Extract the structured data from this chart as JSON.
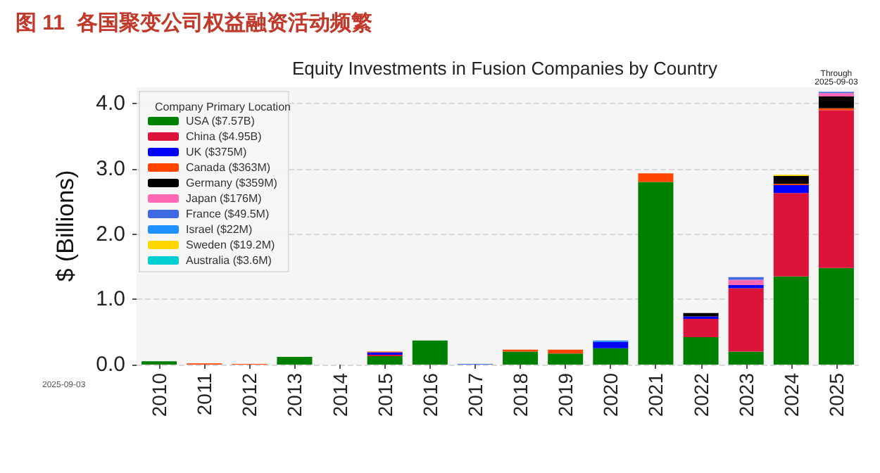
{
  "chart_data": {
    "type": "bar",
    "title": "图 11  各国聚变公司权益融资活动频繁",
    "subtitle": "Equity Investments in Fusion Companies by Country",
    "ylabel": "$ (Billions)",
    "legend_title": "Company Primary Location",
    "categories": [
      "2010",
      "2011",
      "2012",
      "2013",
      "2014",
      "2015",
      "2016",
      "2017",
      "2018",
      "2019",
      "2020",
      "2021",
      "2022",
      "2023",
      "2024",
      "2025"
    ],
    "stacked": true,
    "ylim": [
      0,
      4.25
    ],
    "yticks": [
      {
        "value": 0,
        "label": "0.0"
      },
      {
        "value": 1,
        "label": "1.0"
      },
      {
        "value": 2,
        "label": "2.0"
      },
      {
        "value": 3,
        "label": "3.0"
      },
      {
        "value": 4,
        "label": "4.0"
      }
    ],
    "grid": "y",
    "legend": "top left",
    "series": [
      {
        "name": "USA ($7.57B)",
        "color": "#008000",
        "values": [
          0.05,
          0,
          0,
          0.12,
          0,
          0.13,
          0.37,
          0,
          0.2,
          0.17,
          0.25,
          2.8,
          0.42,
          0.2,
          1.35,
          1.48
        ]
      },
      {
        "name": "China ($4.95B)",
        "color": "#dc143c",
        "values": [
          0,
          0,
          0,
          0,
          0,
          0.02,
          0,
          0,
          0,
          0,
          0,
          0,
          0.28,
          0.97,
          1.28,
          2.42
        ]
      },
      {
        "name": "UK ($375M)",
        "color": "#0000ff",
        "values": [
          0,
          0,
          0,
          0,
          0,
          0.04,
          0,
          0,
          0,
          0,
          0.1,
          0,
          0.04,
          0.05,
          0.12,
          0
        ]
      },
      {
        "name": "Canada ($363M)",
        "color": "#ff4500",
        "values": [
          0,
          0.02,
          0.01,
          0,
          0,
          0.01,
          0,
          0,
          0.03,
          0.06,
          0,
          0.13,
          0,
          0,
          0.02,
          0.03
        ]
      },
      {
        "name": "Germany ($359M)",
        "color": "#000000",
        "values": [
          0,
          0,
          0,
          0,
          0,
          0,
          0,
          0,
          0,
          0,
          0,
          0,
          0.05,
          0,
          0.12,
          0.18
        ]
      },
      {
        "name": "Japan ($176M)",
        "color": "#ff69b4",
        "values": [
          0,
          0,
          0,
          0,
          0,
          0,
          0,
          0,
          0,
          0,
          0,
          0,
          0,
          0.08,
          0,
          0.05
        ]
      },
      {
        "name": "France ($49.5M)",
        "color": "#4169e1",
        "values": [
          0,
          0,
          0,
          0,
          0,
          0,
          0,
          0.01,
          0,
          0,
          0,
          0,
          0,
          0.04,
          0,
          0.02
        ]
      },
      {
        "name": "Israel ($22M)",
        "color": "#1e90ff",
        "values": [
          0,
          0,
          0,
          0,
          0,
          0,
          0,
          0,
          0,
          0,
          0.02,
          0,
          0,
          0,
          0,
          0
        ]
      },
      {
        "name": "Sweden ($19.2M)",
        "color": "#ffd700",
        "values": [
          0,
          0,
          0,
          0,
          0,
          0,
          0,
          0,
          0,
          0,
          0,
          0,
          0,
          0,
          0.02,
          0
        ]
      },
      {
        "name": "Australia ($3.6M)",
        "color": "#00ced1",
        "values": [
          0,
          0,
          0,
          0,
          0,
          0,
          0,
          0,
          0,
          0,
          0,
          0,
          0,
          0,
          0,
          0
        ]
      }
    ],
    "annotations": [
      {
        "text": "Through 2025-09-03",
        "x": "2025",
        "y": 4.18
      },
      "2025-09-03"
    ]
  }
}
